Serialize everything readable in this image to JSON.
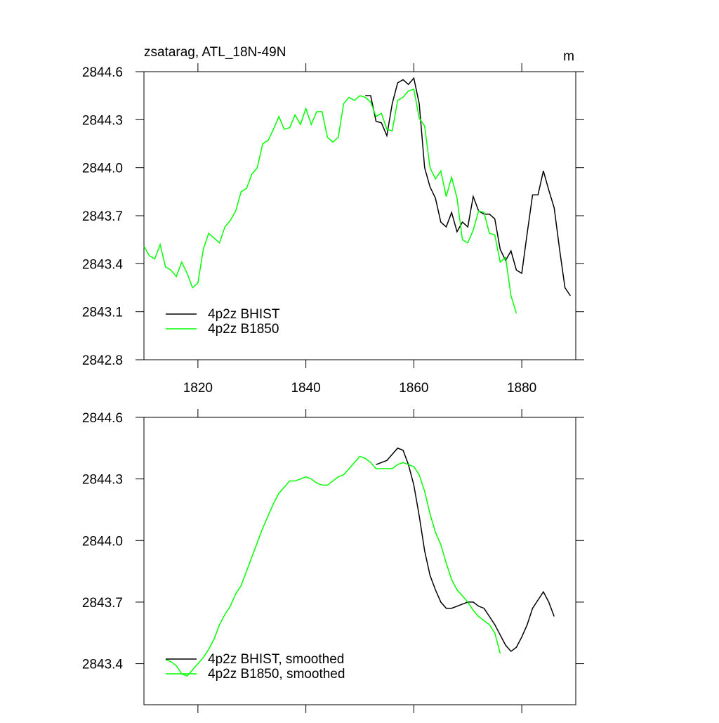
{
  "chart_data": [
    {
      "type": "line",
      "title": "zsatarag, ATL_18N-49N",
      "y_units": "m",
      "xlim": [
        1810,
        1890
      ],
      "xticks": [
        1820,
        1840,
        1860,
        1880
      ],
      "xtick_labels": true,
      "ylim": [
        2842.8,
        2844.6
      ],
      "yticks": [
        2842.8,
        2843.1,
        2843.4,
        2843.7,
        {
          "value": 2844,
          "label": "2844.0"
        },
        2844.3,
        2844.6
      ],
      "legend": "lower left",
      "series": [
        {
          "name": "4p2z BHIST",
          "color": "#000000",
          "x": [
            1851,
            1852,
            1853,
            1854,
            1855,
            1856,
            1857,
            1858,
            1859,
            1860,
            1861,
            1862,
            1863,
            1864,
            1865,
            1866,
            1867,
            1868,
            1869,
            1870,
            1871,
            1872,
            1873,
            1874,
            1875,
            1876,
            1877,
            1878,
            1879,
            1880,
            1881,
            1882,
            1883,
            1884,
            1885,
            1886,
            1887,
            1888,
            1889
          ],
          "values": [
            2844.45,
            2844.45,
            2844.29,
            2844.28,
            2844.2,
            2844.4,
            2844.53,
            2844.55,
            2844.52,
            2844.56,
            2844.4,
            2844.0,
            2843.88,
            2843.81,
            2843.66,
            2843.63,
            2843.72,
            2843.6,
            2843.66,
            2843.63,
            2843.82,
            2843.73,
            2843.71,
            2843.71,
            2843.68,
            2843.49,
            2843.42,
            2843.48,
            2843.36,
            2843.34,
            2843.59,
            2843.83,
            2843.83,
            2843.98,
            2843.86,
            2843.75,
            2843.49,
            2843.25,
            2843.2
          ]
        },
        {
          "name": "4p2z B1850",
          "color": "#00ff00",
          "x": [
            1810,
            1811,
            1812,
            1813,
            1814,
            1815,
            1816,
            1817,
            1818,
            1819,
            1820,
            1821,
            1822,
            1823,
            1824,
            1825,
            1826,
            1827,
            1828,
            1829,
            1830,
            1831,
            1832,
            1833,
            1834,
            1835,
            1836,
            1837,
            1838,
            1839,
            1840,
            1841,
            1842,
            1843,
            1844,
            1845,
            1846,
            1847,
            1848,
            1849,
            1850,
            1851,
            1852,
            1853,
            1854,
            1855,
            1856,
            1857,
            1858,
            1859,
            1860,
            1861,
            1862,
            1863,
            1864,
            1865,
            1866,
            1867,
            1868,
            1869,
            1870,
            1871,
            1872,
            1873,
            1874,
            1875,
            1876,
            1877,
            1878,
            1879
          ],
          "values": [
            2843.51,
            2843.45,
            2843.43,
            2843.52,
            2843.38,
            2843.36,
            2843.32,
            2843.41,
            2843.34,
            2843.25,
            2843.28,
            2843.49,
            2843.59,
            2843.56,
            2843.53,
            2843.63,
            2843.67,
            2843.73,
            2843.85,
            2843.87,
            2843.96,
            2844.0,
            2844.15,
            2844.17,
            2844.24,
            2844.32,
            2844.24,
            2844.25,
            2844.33,
            2844.27,
            2844.37,
            2844.27,
            2844.35,
            2844.35,
            2844.19,
            2844.16,
            2844.19,
            2844.4,
            2844.44,
            2844.42,
            2844.45,
            2844.44,
            2844.41,
            2844.32,
            2844.34,
            2844.24,
            2844.23,
            2844.42,
            2844.44,
            2844.48,
            2844.49,
            2844.31,
            2844.26,
            2844.0,
            2843.93,
            2843.98,
            2843.82,
            2843.94,
            2843.81,
            2843.55,
            2843.53,
            2843.61,
            2843.73,
            2843.72,
            2843.59,
            2843.58,
            2843.41,
            2843.44,
            2843.2,
            2843.09
          ]
        }
      ]
    },
    {
      "type": "line",
      "xlim": [
        1810,
        1890
      ],
      "xticks": [
        1820,
        1840,
        1860,
        1880
      ],
      "xtick_labels": false,
      "ylim": [
        2843.2,
        2844.6
      ],
      "yticks": [
        2843.4,
        2843.7,
        {
          "value": 2844,
          "label": "2844.0"
        },
        2844.3,
        2844.6
      ],
      "legend": "lower left",
      "series": [
        {
          "name": "4p2z BHIST, smoothed",
          "color": "#000000",
          "x": [
            1853,
            1854,
            1855,
            1856,
            1857,
            1858,
            1859,
            1860,
            1861,
            1862,
            1863,
            1864,
            1865,
            1866,
            1867,
            1868,
            1869,
            1870,
            1871,
            1872,
            1873,
            1874,
            1875,
            1876,
            1877,
            1878,
            1879,
            1880,
            1881,
            1882,
            1883,
            1884,
            1885,
            1886
          ],
          "values": [
            2844.37,
            2844.38,
            2844.39,
            2844.42,
            2844.45,
            2844.44,
            2844.37,
            2844.27,
            2844.12,
            2843.95,
            2843.83,
            2843.76,
            2843.7,
            2843.67,
            2843.67,
            2843.68,
            2843.69,
            2843.7,
            2843.7,
            2843.68,
            2843.67,
            2843.63,
            2843.59,
            2843.54,
            2843.49,
            2843.46,
            2843.48,
            2843.53,
            2843.59,
            2843.67,
            2843.71,
            2843.75,
            2843.7,
            2843.63
          ]
        },
        {
          "name": "4p2z B1850, smoothed",
          "color": "#00ff00",
          "x": [
            1814,
            1815,
            1816,
            1817,
            1818,
            1819,
            1820,
            1821,
            1822,
            1823,
            1824,
            1825,
            1826,
            1827,
            1828,
            1829,
            1830,
            1831,
            1832,
            1833,
            1834,
            1835,
            1836,
            1837,
            1838,
            1839,
            1840,
            1841,
            1842,
            1843,
            1844,
            1845,
            1846,
            1847,
            1848,
            1849,
            1850,
            1851,
            1852,
            1853,
            1854,
            1855,
            1856,
            1857,
            1858,
            1859,
            1860,
            1861,
            1862,
            1863,
            1864,
            1865,
            1866,
            1867,
            1868,
            1869,
            1870,
            1871,
            1872,
            1873,
            1874,
            1875,
            1876
          ],
          "values": [
            2843.42,
            2843.41,
            2843.39,
            2843.35,
            2843.34,
            2843.37,
            2843.4,
            2843.43,
            2843.47,
            2843.52,
            2843.59,
            2843.64,
            2843.68,
            2843.74,
            2843.78,
            2843.85,
            2843.92,
            2843.99,
            2844.06,
            2844.12,
            2844.18,
            2844.23,
            2844.26,
            2844.29,
            2844.29,
            2844.3,
            2844.31,
            2844.3,
            2844.28,
            2844.27,
            2844.27,
            2844.29,
            2844.31,
            2844.32,
            2844.35,
            2844.38,
            2844.41,
            2844.4,
            2844.38,
            2844.35,
            2844.35,
            2844.35,
            2844.35,
            2844.37,
            2844.38,
            2844.37,
            2844.36,
            2844.32,
            2844.24,
            2844.13,
            2844.04,
            2843.98,
            2843.89,
            2843.81,
            2843.76,
            2843.73,
            2843.7,
            2843.66,
            2843.63,
            2843.61,
            2843.59,
            2843.55,
            2843.45
          ]
        }
      ]
    }
  ]
}
